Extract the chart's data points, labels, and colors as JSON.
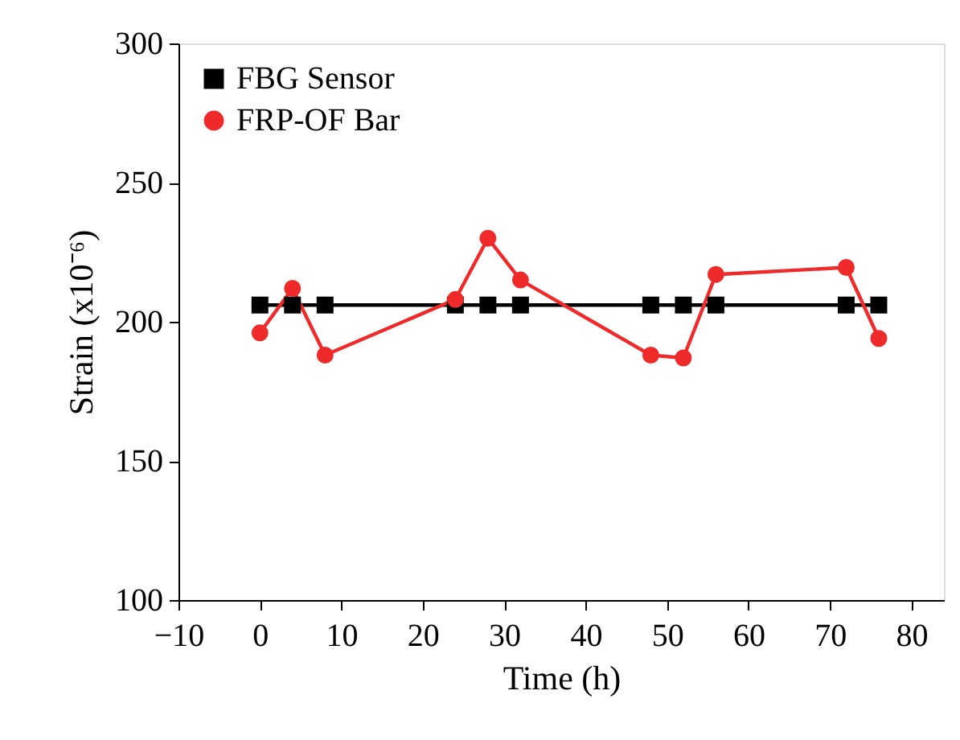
{
  "chart_data": {
    "type": "line",
    "xlabel": "Time (h)",
    "ylabel": "Strain (x10⁻⁶)",
    "xlim": [
      -10,
      84
    ],
    "xticks": [
      -10,
      0,
      10,
      20,
      30,
      40,
      50,
      60,
      70,
      80
    ],
    "ylim": [
      100,
      300
    ],
    "yticks": [
      100,
      150,
      200,
      250,
      300
    ],
    "grid": false,
    "legend": "top left",
    "line_style": "solid",
    "x": [
      0,
      4,
      8,
      24,
      28,
      32,
      48,
      52,
      56,
      72,
      76
    ],
    "series": [
      {
        "name": "FBG Sensor",
        "color": "#000000",
        "marker": "square",
        "values": [
          206,
          206,
          206,
          206,
          206,
          206,
          206,
          206,
          206,
          206,
          206
        ]
      },
      {
        "name": "FRP-OF Bar",
        "color": "#ee2a2a",
        "marker": "circle",
        "values": [
          196,
          212,
          188,
          208,
          230,
          215,
          188,
          187,
          217,
          219.5,
          194
        ]
      }
    ]
  }
}
